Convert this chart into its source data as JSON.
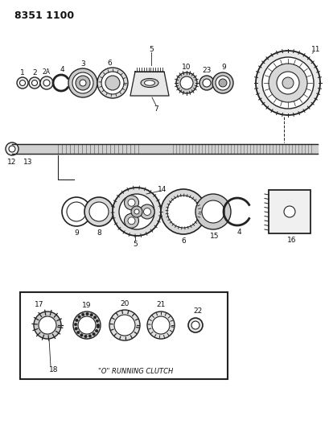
{
  "title": "8351 1100",
  "background_color": "#ffffff",
  "line_color": "#222222",
  "text_color": "#111111",
  "subtitle_inset": "\"O\" RUNNING CLUTCH",
  "fig_width": 4.1,
  "fig_height": 5.33,
  "dpi": 100
}
